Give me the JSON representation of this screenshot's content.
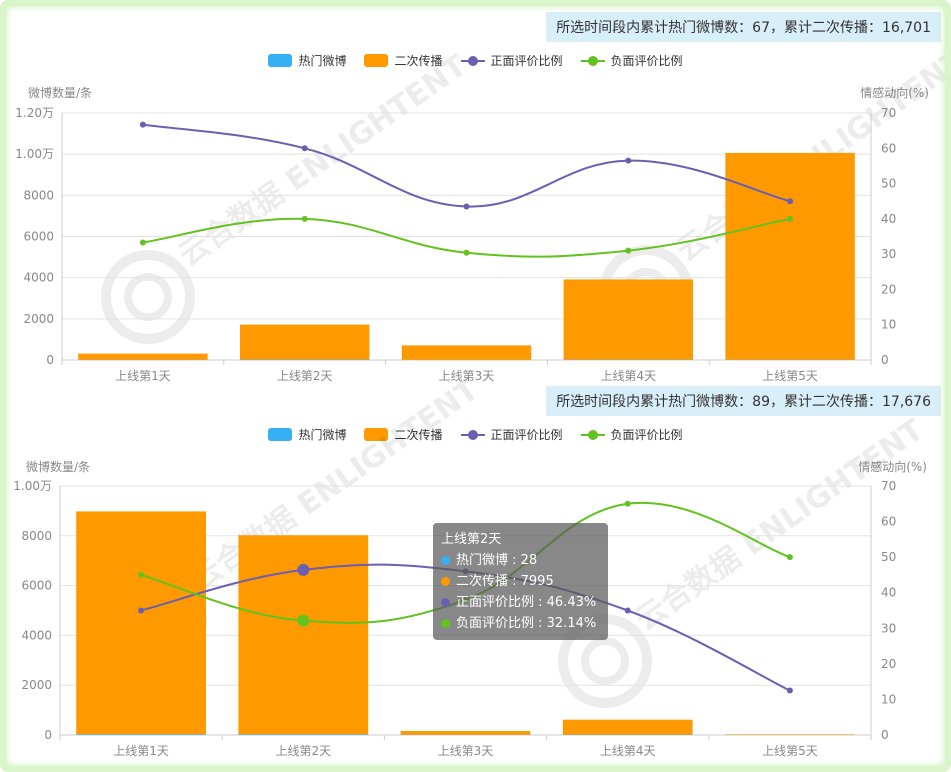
{
  "legend": [
    {
      "name": "热门微博",
      "color": "#35b0f5",
      "kind": "bar"
    },
    {
      "name": "二次传播",
      "color": "#ff9900",
      "kind": "bar"
    },
    {
      "name": "正面评价比例",
      "color": "#6a5fb0",
      "kind": "line"
    },
    {
      "name": "负面评价比例",
      "color": "#62c21e",
      "kind": "line"
    }
  ],
  "watermark": "云合数据 ENLIGHTENT",
  "chart_data": [
    {
      "type": "bar",
      "summary": "所选时间段内累计热门微博数：67，累计二次传播：16,701",
      "ylabel": "微博数量/条",
      "y2label": "情感动向(%)",
      "categories": [
        "上线第1天",
        "上线第2天",
        "上线第3天",
        "上线第4天",
        "上线第5天"
      ],
      "ylim": [
        0,
        12000
      ],
      "ytick_labels": [
        "0",
        "2000",
        "4000",
        "6000",
        "8000",
        "1.00万",
        "1.20万"
      ],
      "y2lim": [
        0,
        70
      ],
      "y2tick_labels": [
        "0",
        "10",
        "20",
        "30",
        "40",
        "50",
        "60",
        "70"
      ],
      "series": [
        {
          "name": "热门微博",
          "type": "bar",
          "color": "#35b0f5",
          "values": [
            10,
            20,
            10,
            15,
            12
          ]
        },
        {
          "name": "二次传播",
          "type": "bar",
          "color": "#ff9900",
          "values": [
            300,
            1700,
            700,
            3900,
            10050
          ]
        },
        {
          "name": "正面评价比例",
          "type": "line",
          "color": "#6a5fb0",
          "axis": "right",
          "values": [
            66.7,
            60.0,
            43.5,
            56.5,
            45.0
          ]
        },
        {
          "name": "负面评价比例",
          "type": "line",
          "color": "#62c21e",
          "axis": "right",
          "values": [
            33.3,
            40.0,
            30.4,
            31.0,
            40.0
          ]
        }
      ]
    },
    {
      "type": "bar",
      "summary": "所选时间段内累计热门微博数：89，累计二次传播：17,676",
      "ylabel": "微博数量/条",
      "y2label": "情感动向(%)",
      "categories": [
        "上线第1天",
        "上线第2天",
        "上线第3天",
        "上线第4天",
        "上线第5天"
      ],
      "ylim": [
        0,
        10000
      ],
      "ytick_labels": [
        "0",
        "2000",
        "4000",
        "6000",
        "8000",
        "1.00万"
      ],
      "y2lim": [
        0,
        70
      ],
      "y2tick_labels": [
        "0",
        "10",
        "20",
        "30",
        "40",
        "50",
        "60",
        "70"
      ],
      "series": [
        {
          "name": "热门微博",
          "type": "bar",
          "color": "#35b0f5",
          "values": [
            30,
            28,
            10,
            15,
            6
          ]
        },
        {
          "name": "二次传播",
          "type": "bar",
          "color": "#ff9900",
          "values": [
            8950,
            7995,
            150,
            600,
            20
          ]
        },
        {
          "name": "正面评价比例",
          "type": "line",
          "color": "#6a5fb0",
          "axis": "right",
          "values": [
            35.0,
            46.43,
            46.0,
            35.0,
            12.5
          ]
        },
        {
          "name": "负面评价比例",
          "type": "line",
          "color": "#62c21e",
          "axis": "right",
          "values": [
            45.0,
            32.14,
            38.0,
            65.0,
            50.0
          ]
        }
      ],
      "highlight_index": 1
    }
  ],
  "tooltip": {
    "title": "上线第2天",
    "rows": [
      {
        "label": "热门微博 : 28",
        "color": "#35b0f5"
      },
      {
        "label": "二次传播 : 7995",
        "color": "#ff9900"
      },
      {
        "label": "正面评价比例 : 46.43%",
        "color": "#6a5fb0"
      },
      {
        "label": "负面评价比例 : 32.14%",
        "color": "#62c21e"
      }
    ]
  }
}
